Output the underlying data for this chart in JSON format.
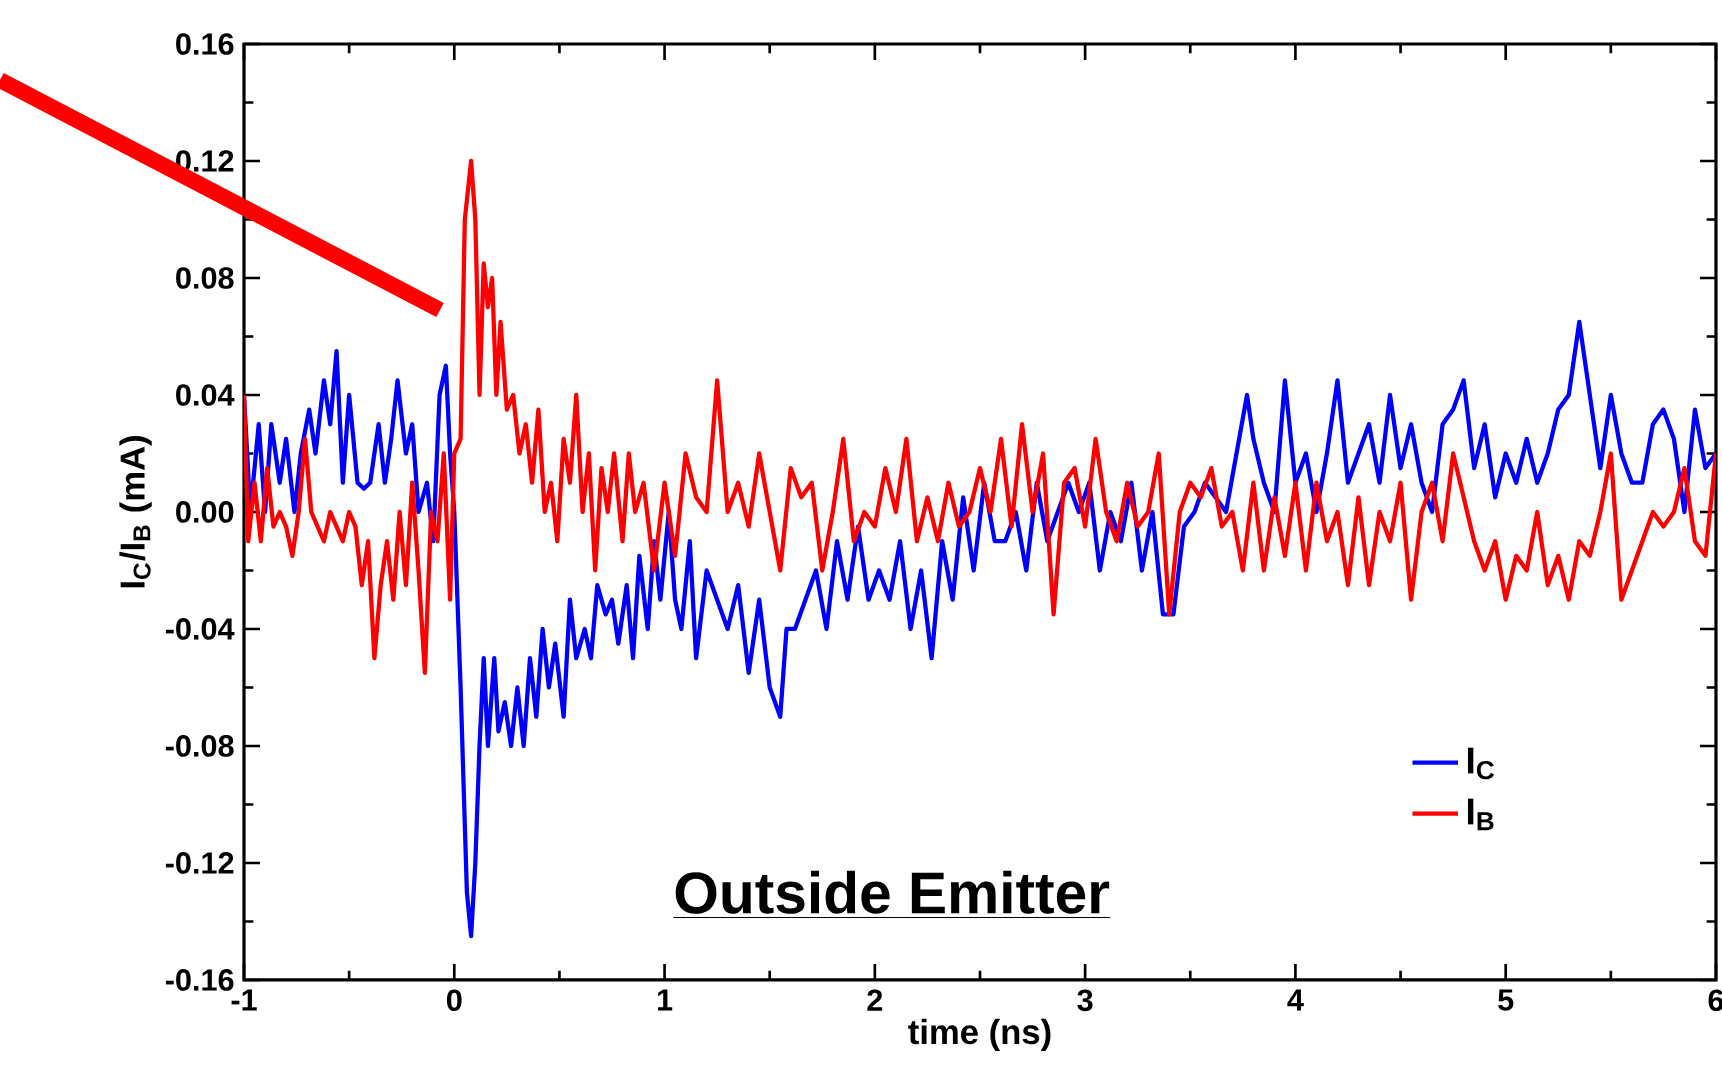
{
  "chart_data": {
    "type": "line",
    "xlabel": "time (ns)",
    "ylabel": "I$_{C}$/I$_{B}$ (mA)",
    "annotations": [
      "Outside Emitter"
    ],
    "xlim": [
      -1,
      6
    ],
    "xticks": [
      -1,
      0,
      1,
      2,
      3,
      4,
      5,
      6
    ],
    "ylim": [
      -0.16,
      0.16
    ],
    "yticks": [
      {
        "value": -0.16,
        "label": "-0.16"
      },
      {
        "value": -0.12,
        "label": "-0.12"
      },
      {
        "value": -0.08,
        "label": "-0.08"
      },
      {
        "value": -0.04,
        "label": "-0.04"
      },
      {
        "value": 0,
        "label": "0.00"
      },
      {
        "value": 0.04,
        "label": "0.04"
      },
      {
        "value": 0.08,
        "label": "0.08"
      },
      {
        "value": 0.12,
        "label": "0.12"
      },
      {
        "value": 0.16,
        "label": "0.16"
      }
    ],
    "grid": false,
    "legend": "bottom right",
    "series": [
      {
        "name": "I$_{C}$",
        "color": "#0000ff",
        "x": [
          -1.0,
          -0.97,
          -0.93,
          -0.9,
          -0.87,
          -0.83,
          -0.8,
          -0.76,
          -0.73,
          -0.69,
          -0.66,
          -0.62,
          -0.59,
          -0.56,
          -0.53,
          -0.5,
          -0.46,
          -0.43,
          -0.4,
          -0.36,
          -0.33,
          -0.3,
          -0.27,
          -0.23,
          -0.2,
          -0.17,
          -0.13,
          -0.1,
          -0.07,
          -0.04,
          -0.02,
          0.0,
          0.03,
          0.06,
          0.08,
          0.1,
          0.12,
          0.14,
          0.16,
          0.19,
          0.21,
          0.24,
          0.27,
          0.3,
          0.33,
          0.36,
          0.39,
          0.42,
          0.45,
          0.48,
          0.52,
          0.55,
          0.58,
          0.62,
          0.65,
          0.68,
          0.72,
          0.75,
          0.78,
          0.82,
          0.85,
          0.88,
          0.92,
          0.95,
          0.98,
          1.02,
          1.05,
          1.08,
          1.12,
          1.15,
          1.2,
          1.25,
          1.3,
          1.35,
          1.4,
          1.45,
          1.5,
          1.55,
          1.58,
          1.62,
          1.67,
          1.72,
          1.77,
          1.82,
          1.87,
          1.92,
          1.97,
          2.02,
          2.07,
          2.12,
          2.17,
          2.22,
          2.27,
          2.32,
          2.37,
          2.42,
          2.47,
          2.52,
          2.57,
          2.62,
          2.67,
          2.72,
          2.77,
          2.82,
          2.87,
          2.92,
          2.97,
          3.02,
          3.07,
          3.12,
          3.17,
          3.22,
          3.27,
          3.32,
          3.37,
          3.42,
          3.47,
          3.52,
          3.57,
          3.62,
          3.67,
          3.72,
          3.77,
          3.8,
          3.85,
          3.9,
          3.95,
          4.0,
          4.05,
          4.1,
          4.15,
          4.2,
          4.25,
          4.3,
          4.35,
          4.4,
          4.45,
          4.5,
          4.55,
          4.6,
          4.65,
          4.7,
          4.75,
          4.8,
          4.85,
          4.9,
          4.95,
          5.0,
          5.05,
          5.1,
          5.15,
          5.2,
          5.25,
          5.3,
          5.35,
          5.4,
          5.45,
          5.5,
          5.55,
          5.6,
          5.65,
          5.7,
          5.75,
          5.8,
          5.85,
          5.9,
          5.95,
          6.0
        ],
        "values": [
          0.04,
          0.0,
          0.03,
          0.0,
          0.03,
          0.01,
          0.025,
          0.0,
          0.02,
          0.035,
          0.02,
          0.045,
          0.03,
          0.055,
          0.01,
          0.04,
          0.01,
          0.008,
          0.01,
          0.03,
          0.01,
          0.025,
          0.045,
          0.02,
          0.03,
          0.0,
          0.01,
          -0.01,
          0.04,
          0.05,
          0.02,
          0.0,
          -0.06,
          -0.13,
          -0.145,
          -0.12,
          -0.08,
          -0.05,
          -0.08,
          -0.05,
          -0.075,
          -0.065,
          -0.08,
          -0.06,
          -0.08,
          -0.05,
          -0.07,
          -0.04,
          -0.06,
          -0.045,
          -0.07,
          -0.03,
          -0.05,
          -0.04,
          -0.05,
          -0.025,
          -0.035,
          -0.03,
          -0.045,
          -0.025,
          -0.05,
          -0.015,
          -0.04,
          -0.01,
          -0.03,
          0.0,
          -0.03,
          -0.04,
          -0.01,
          -0.05,
          -0.02,
          -0.03,
          -0.04,
          -0.025,
          -0.055,
          -0.03,
          -0.06,
          -0.07,
          -0.04,
          -0.04,
          -0.03,
          -0.02,
          -0.04,
          -0.01,
          -0.03,
          -0.005,
          -0.03,
          -0.02,
          -0.03,
          -0.01,
          -0.04,
          -0.02,
          -0.05,
          -0.01,
          -0.03,
          0.005,
          -0.02,
          0.01,
          -0.01,
          -0.01,
          0.0,
          -0.02,
          0.01,
          -0.01,
          0.0,
          0.01,
          0.0,
          0.01,
          -0.02,
          0.0,
          -0.01,
          0.01,
          -0.02,
          0.0,
          -0.035,
          -0.035,
          -0.005,
          0.0,
          0.01,
          0.005,
          0.0,
          0.02,
          0.04,
          0.025,
          0.01,
          0.0,
          0.045,
          0.01,
          0.02,
          0.0,
          0.02,
          0.045,
          0.01,
          0.02,
          0.03,
          0.01,
          0.04,
          0.015,
          0.03,
          0.01,
          0.0,
          0.03,
          0.035,
          0.045,
          0.015,
          0.03,
          0.005,
          0.02,
          0.01,
          0.025,
          0.01,
          0.02,
          0.035,
          0.04,
          0.065,
          0.04,
          0.015,
          0.04,
          0.02,
          0.01,
          0.01,
          0.03,
          0.035,
          0.025,
          0.0,
          0.035,
          0.015,
          0.02
        ]
      },
      {
        "name": "I$_{B}$",
        "color": "#ff0000",
        "x": [
          -1.0,
          -0.98,
          -0.95,
          -0.92,
          -0.89,
          -0.86,
          -0.83,
          -0.8,
          -0.77,
          -0.74,
          -0.71,
          -0.68,
          -0.65,
          -0.62,
          -0.59,
          -0.56,
          -0.53,
          -0.5,
          -0.47,
          -0.44,
          -0.41,
          -0.38,
          -0.35,
          -0.32,
          -0.29,
          -0.26,
          -0.23,
          -0.2,
          -0.17,
          -0.14,
          -0.11,
          -0.08,
          -0.05,
          -0.02,
          0.0,
          0.03,
          0.05,
          0.08,
          0.1,
          0.12,
          0.14,
          0.16,
          0.18,
          0.2,
          0.22,
          0.25,
          0.28,
          0.31,
          0.34,
          0.37,
          0.4,
          0.43,
          0.46,
          0.49,
          0.52,
          0.55,
          0.58,
          0.61,
          0.64,
          0.67,
          0.7,
          0.73,
          0.76,
          0.8,
          0.83,
          0.86,
          0.9,
          0.95,
          1.0,
          1.05,
          1.1,
          1.15,
          1.2,
          1.25,
          1.3,
          1.35,
          1.4,
          1.45,
          1.5,
          1.55,
          1.6,
          1.65,
          1.7,
          1.75,
          1.8,
          1.85,
          1.9,
          1.95,
          2.0,
          2.05,
          2.1,
          2.15,
          2.2,
          2.25,
          2.3,
          2.35,
          2.4,
          2.45,
          2.5,
          2.55,
          2.6,
          2.65,
          2.7,
          2.75,
          2.8,
          2.85,
          2.9,
          2.95,
          3.0,
          3.05,
          3.1,
          3.15,
          3.2,
          3.25,
          3.3,
          3.35,
          3.4,
          3.45,
          3.5,
          3.55,
          3.6,
          3.65,
          3.7,
          3.75,
          3.8,
          3.85,
          3.9,
          3.95,
          4.0,
          4.05,
          4.1,
          4.15,
          4.2,
          4.25,
          4.3,
          4.35,
          4.4,
          4.45,
          4.5,
          4.55,
          4.6,
          4.65,
          4.7,
          4.75,
          4.8,
          4.85,
          4.9,
          4.95,
          5.0,
          5.05,
          5.1,
          5.15,
          5.2,
          5.25,
          5.3,
          5.35,
          5.4,
          5.45,
          5.5,
          5.55,
          5.6,
          5.65,
          5.7,
          5.75,
          5.8,
          5.85,
          5.9,
          5.95,
          6.0
        ],
        "values": [
          0.04,
          -0.01,
          0.01,
          -0.01,
          0.015,
          -0.005,
          0.0,
          -0.005,
          -0.015,
          0.0,
          0.025,
          0.0,
          -0.005,
          -0.01,
          0.0,
          -0.005,
          -0.01,
          0.0,
          -0.005,
          -0.025,
          -0.01,
          -0.05,
          -0.025,
          -0.01,
          -0.03,
          0.0,
          -0.025,
          0.01,
          -0.02,
          -0.055,
          0.0,
          -0.01,
          0.02,
          -0.03,
          0.02,
          0.025,
          0.1,
          0.12,
          0.1,
          0.04,
          0.085,
          0.07,
          0.08,
          0.04,
          0.065,
          0.035,
          0.04,
          0.02,
          0.03,
          0.01,
          0.035,
          0.0,
          0.01,
          -0.01,
          0.025,
          0.01,
          0.04,
          0.0,
          0.02,
          -0.02,
          0.015,
          0.0,
          0.02,
          -0.01,
          0.02,
          0.0,
          0.01,
          -0.02,
          0.01,
          -0.015,
          0.02,
          0.005,
          0.0,
          0.045,
          0.0,
          0.01,
          -0.005,
          0.02,
          0.0,
          -0.02,
          0.015,
          0.005,
          0.01,
          -0.02,
          0.0,
          0.025,
          -0.01,
          0.0,
          -0.005,
          0.015,
          0.0,
          0.025,
          -0.01,
          0.005,
          -0.01,
          0.01,
          -0.005,
          0.0,
          0.015,
          0.0,
          0.025,
          -0.005,
          0.03,
          0.0,
          0.02,
          -0.035,
          0.01,
          0.015,
          -0.005,
          0.025,
          0.0,
          -0.01,
          0.01,
          -0.005,
          0.0,
          0.02,
          -0.035,
          0.0,
          0.01,
          0.005,
          0.015,
          -0.005,
          0.0,
          -0.02,
          0.01,
          -0.02,
          0.005,
          -0.015,
          0.01,
          -0.02,
          0.01,
          -0.01,
          0.0,
          -0.025,
          0.005,
          -0.025,
          0.0,
          -0.01,
          0.01,
          -0.03,
          0.0,
          0.01,
          -0.01,
          0.02,
          0.005,
          -0.01,
          -0.02,
          -0.01,
          -0.03,
          -0.015,
          -0.02,
          0.0,
          -0.025,
          -0.015,
          -0.03,
          -0.01,
          -0.015,
          0.0,
          0.02,
          -0.03,
          -0.02,
          -0.01,
          0.0,
          -0.005,
          0.0,
          0.015,
          -0.01,
          -0.015,
          0.02
        ]
      }
    ]
  }
}
